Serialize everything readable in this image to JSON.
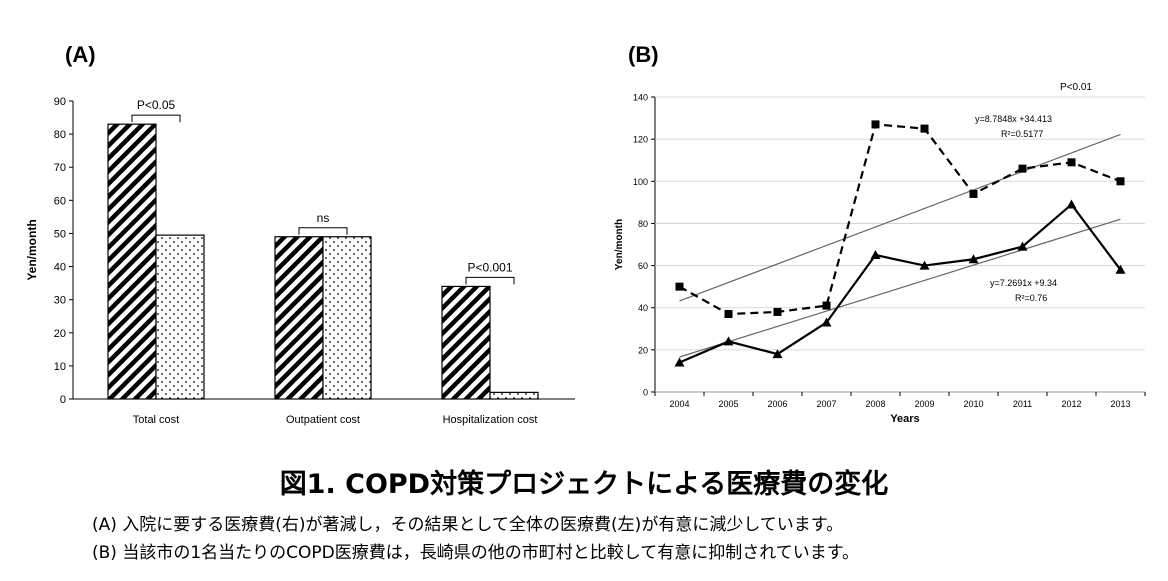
{
  "panel_a_label": "(A)",
  "panel_b_label": "(B)",
  "caption": {
    "title": "図1. COPD対策プロジェクトによる医療費の変化",
    "line_a": "(A)  入院に要する医療費(右)が著減し，その結果として全体の医療費(左)が有意に減少しています。",
    "line_b": "(B)  当該市の1名当たりのCOPD医療費は，長崎県の他の市町村と比較して有意に抑制されています。"
  },
  "chart_data": [
    {
      "type": "bar",
      "ylabel": "Yen/month",
      "ylim": [
        0,
        90
      ],
      "yticks": [
        "0",
        "10",
        "20",
        "30",
        "40",
        "50",
        "60",
        "70",
        "80",
        "90"
      ],
      "categories": [
        "Total cost",
        "Outpatient cost",
        "Hospitalization cost"
      ],
      "series": [
        {
          "pattern": "diagonal-hatch",
          "values": [
            83,
            49,
            34
          ]
        },
        {
          "pattern": "dotted",
          "values": [
            49.5,
            49,
            2
          ]
        }
      ],
      "annotations": [
        "P<0.05",
        "ns",
        "P<0.001"
      ]
    },
    {
      "type": "line",
      "xlabel": "Years",
      "ylabel": "Yen/month",
      "ylim": [
        0,
        140
      ],
      "x": [
        "2004",
        "2005",
        "2006",
        "2007",
        "2008",
        "2009",
        "2010",
        "2011",
        "2012",
        "2013"
      ],
      "yticks": [
        "0",
        "20",
        "40",
        "60",
        "80",
        "100",
        "120",
        "140"
      ],
      "series": [
        {
          "style": "dashed",
          "marker": "square",
          "values": [
            50,
            37,
            38,
            41,
            127,
            125,
            94,
            106,
            109,
            100
          ]
        },
        {
          "style": "solid",
          "marker": "triangle",
          "values": [
            14,
            24,
            18,
            33,
            65,
            60,
            63,
            69,
            89,
            58
          ]
        }
      ],
      "trendlines": [
        {
          "slope": 8.7848,
          "intercept": 34.413,
          "equation": "y=8.7848x +34.413",
          "r2": "R²=0.5177"
        },
        {
          "slope": 7.2691,
          "intercept": 9.34,
          "equation": "y=7.2691x +9.34",
          "r2": "R²=0.76"
        }
      ],
      "annotation": "P<0.01"
    }
  ]
}
